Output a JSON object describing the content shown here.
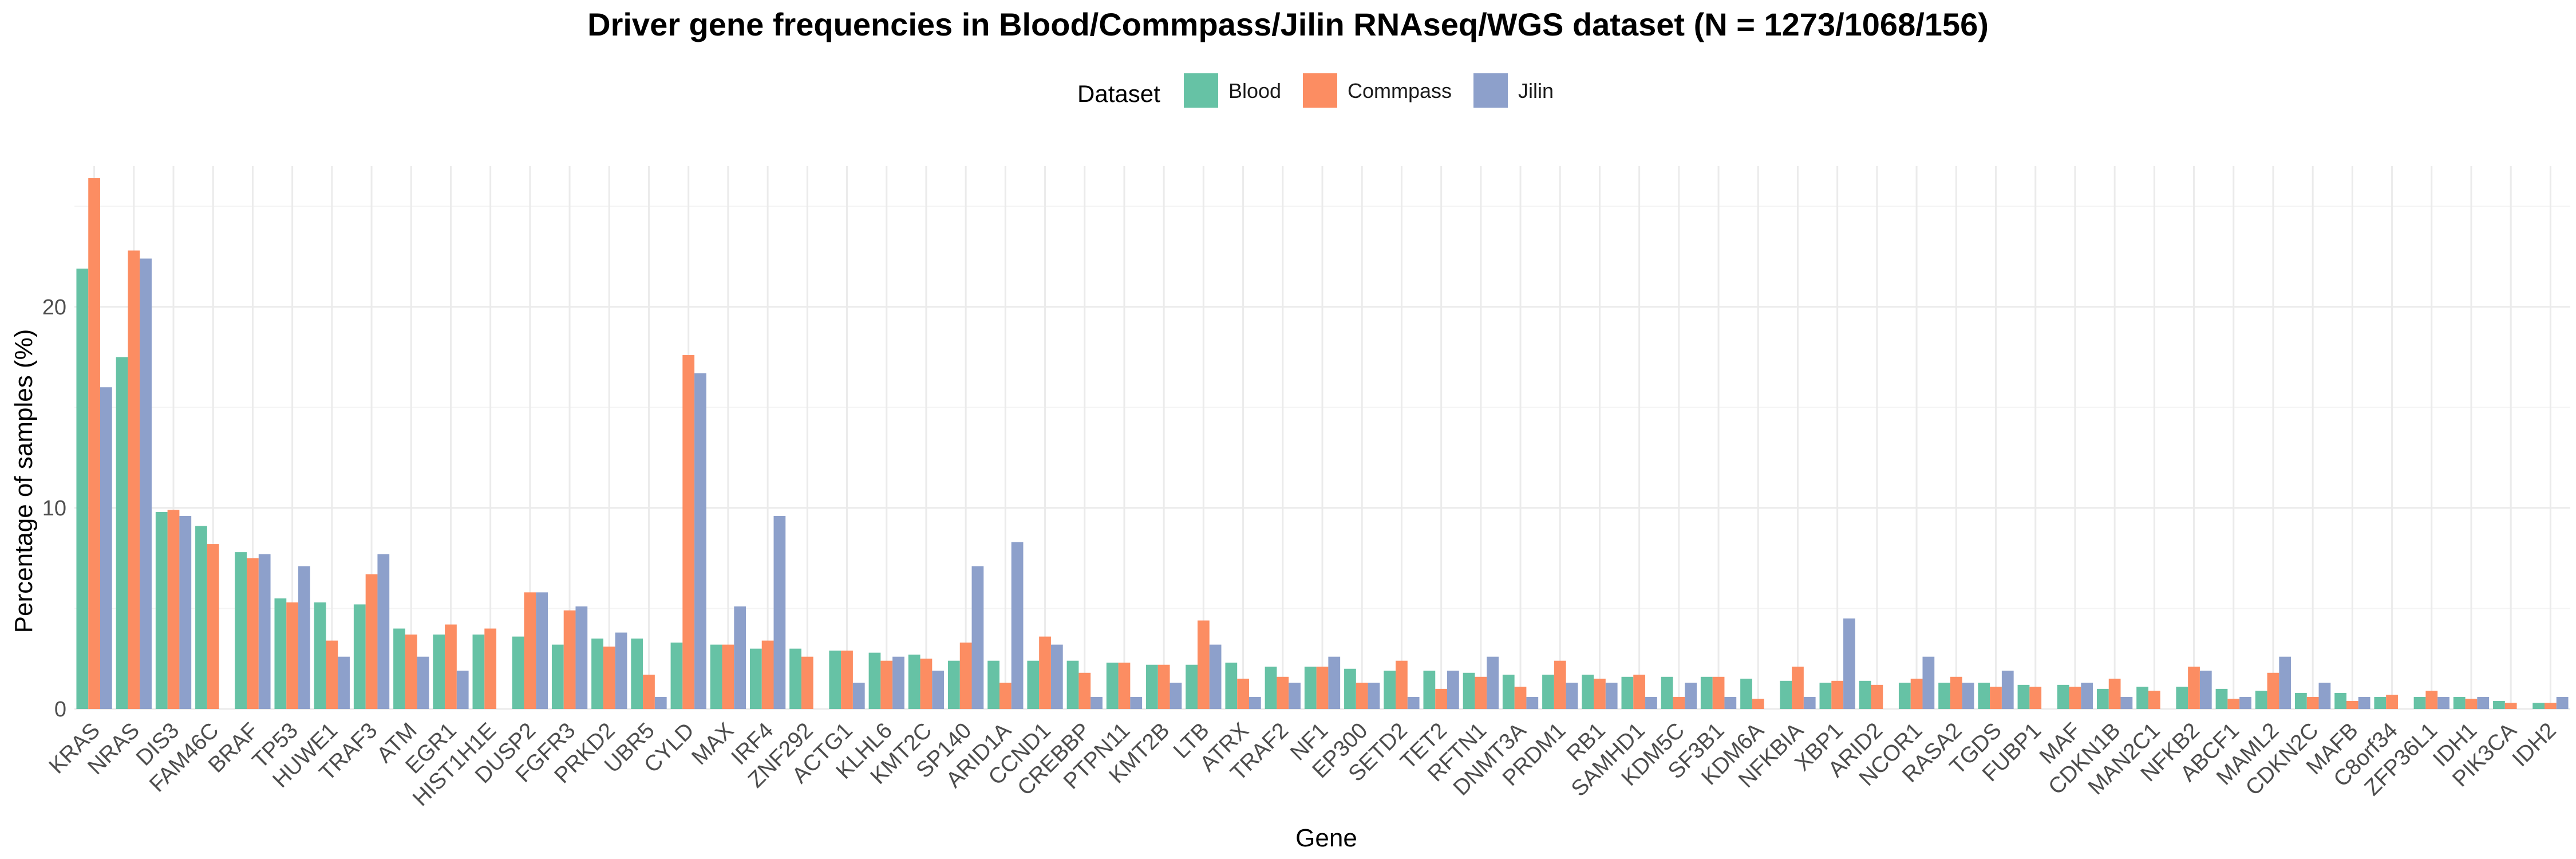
{
  "chart_data": {
    "type": "bar",
    "title": "Driver gene frequencies in Blood/Commpass/Jilin RNAseq/WGS dataset (N = 1273/1068/156)",
    "xlabel": "Gene",
    "ylabel": "Percentage of samples (%)",
    "ylim": [
      0,
      27
    ],
    "yticks": [
      0,
      10,
      20
    ],
    "grid": true,
    "legend": {
      "title": "Dataset",
      "position": "top"
    },
    "colors": {
      "Blood": "#66C2A5",
      "Commpass": "#FC8D62",
      "Jilin": "#8DA0CB"
    },
    "categories": [
      "KRAS",
      "NRAS",
      "DIS3",
      "FAM46C",
      "BRAF",
      "TP53",
      "HUWE1",
      "TRAF3",
      "ATM",
      "EGR1",
      "HIST1H1E",
      "DUSP2",
      "FGFR3",
      "PRKD2",
      "UBR5",
      "CYLD",
      "MAX",
      "IRF4",
      "ZNF292",
      "ACTG1",
      "KLHL6",
      "KMT2C",
      "SP140",
      "ARID1A",
      "CCND1",
      "CREBBP",
      "PTPN11",
      "KMT2B",
      "LTB",
      "ATRX",
      "TRAF2",
      "NF1",
      "EP300",
      "SETD2",
      "TET2",
      "RFTN1",
      "DNMT3A",
      "PRDM1",
      "RB1",
      "SAMHD1",
      "KDM5C",
      "SF3B1",
      "KDM6A",
      "NFKBIA",
      "XBP1",
      "ARID2",
      "NCOR1",
      "RASA2",
      "TGDS",
      "FUBP1",
      "MAF",
      "CDKN1B",
      "MAN2C1",
      "NFKB2",
      "ABCF1",
      "MAML2",
      "CDKN2C",
      "MAFB",
      "C8orf34",
      "ZFP36L1",
      "IDH1",
      "PIK3CA",
      "IDH2"
    ],
    "series": [
      {
        "name": "Blood",
        "values": [
          21.9,
          17.5,
          9.8,
          9.1,
          7.8,
          5.5,
          5.3,
          5.2,
          4.0,
          3.7,
          3.7,
          3.6,
          3.2,
          3.5,
          3.5,
          3.3,
          3.2,
          3.0,
          3.0,
          2.9,
          2.8,
          2.7,
          2.4,
          2.4,
          2.4,
          2.4,
          2.3,
          2.2,
          2.2,
          2.3,
          2.1,
          2.1,
          2.0,
          1.9,
          1.9,
          1.8,
          1.7,
          1.7,
          1.7,
          1.6,
          1.6,
          1.6,
          1.5,
          1.4,
          1.3,
          1.4,
          1.3,
          1.3,
          1.3,
          1.2,
          1.2,
          1.0,
          1.1,
          1.1,
          1.0,
          0.9,
          0.8,
          0.8,
          0.6,
          0.6,
          0.6,
          0.4,
          0.3
        ]
      },
      {
        "name": "Commpass",
        "values": [
          26.4,
          22.8,
          9.9,
          8.2,
          7.5,
          5.3,
          3.4,
          6.7,
          3.7,
          4.2,
          4.0,
          5.8,
          4.9,
          3.1,
          1.7,
          17.6,
          3.2,
          3.4,
          2.6,
          2.9,
          2.4,
          2.5,
          3.3,
          1.3,
          3.6,
          1.8,
          2.3,
          2.2,
          4.4,
          1.5,
          1.6,
          2.1,
          1.3,
          2.4,
          1.0,
          1.6,
          1.1,
          2.4,
          1.5,
          1.7,
          0.6,
          1.6,
          0.5,
          2.1,
          1.4,
          1.2,
          1.5,
          1.6,
          1.1,
          1.1,
          1.1,
          1.5,
          0.9,
          2.1,
          0.5,
          1.8,
          0.6,
          0.4,
          0.7,
          0.9,
          0.5,
          0.3,
          0.3
        ]
      },
      {
        "name": "Jilin",
        "values": [
          16.0,
          22.4,
          9.6,
          0.0,
          7.7,
          7.1,
          2.6,
          7.7,
          2.6,
          1.9,
          0.0,
          5.8,
          5.1,
          3.8,
          0.6,
          16.7,
          5.1,
          9.6,
          0.0,
          1.3,
          2.6,
          1.9,
          7.1,
          8.3,
          3.2,
          0.6,
          0.6,
          1.3,
          3.2,
          0.6,
          1.3,
          2.6,
          1.3,
          0.6,
          1.9,
          2.6,
          0.6,
          1.3,
          1.3,
          0.6,
          1.3,
          0.6,
          0.0,
          0.6,
          4.5,
          0.0,
          2.6,
          1.3,
          1.9,
          0.0,
          1.3,
          0.6,
          0.0,
          1.9,
          0.6,
          2.6,
          1.3,
          0.6,
          0.0,
          0.6,
          0.6,
          0.0,
          0.6
        ]
      }
    ]
  }
}
